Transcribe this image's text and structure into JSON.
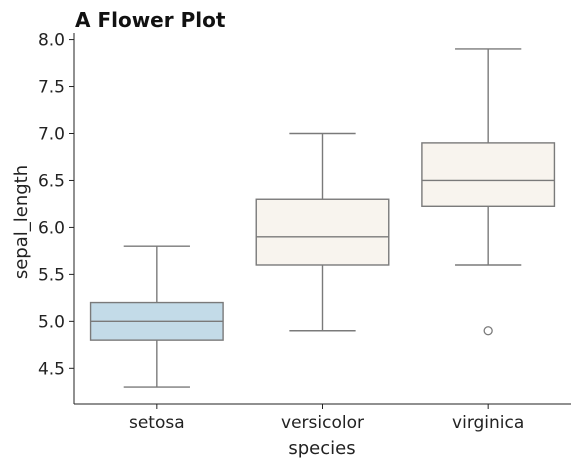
{
  "chart_data": {
    "type": "box",
    "title": "A Flower Plot",
    "xlabel": "species",
    "ylabel": "sepal_length",
    "ylim": [
      4.12,
      8.07
    ],
    "y_ticks": [
      4.5,
      5.0,
      5.5,
      6.0,
      6.5,
      7.0,
      7.5,
      8.0
    ],
    "grid": false,
    "categories": [
      "setosa",
      "versicolor",
      "virginica"
    ],
    "boxes": [
      {
        "category": "setosa",
        "whisker_low": 4.3,
        "q1": 4.8,
        "median": 5.0,
        "q3": 5.2,
        "whisker_high": 5.8,
        "outliers": [],
        "color": "#c3dbe8"
      },
      {
        "category": "versicolor",
        "whisker_low": 4.9,
        "q1": 5.6,
        "median": 5.9,
        "q3": 6.3,
        "whisker_high": 7.0,
        "outliers": [],
        "color": "#f8f4ee"
      },
      {
        "category": "virginica",
        "whisker_low": 5.6,
        "q1": 6.225,
        "median": 6.5,
        "q3": 6.9,
        "whisker_high": 7.9,
        "outliers": [
          4.9
        ],
        "color": "#f8f4ee"
      }
    ]
  }
}
